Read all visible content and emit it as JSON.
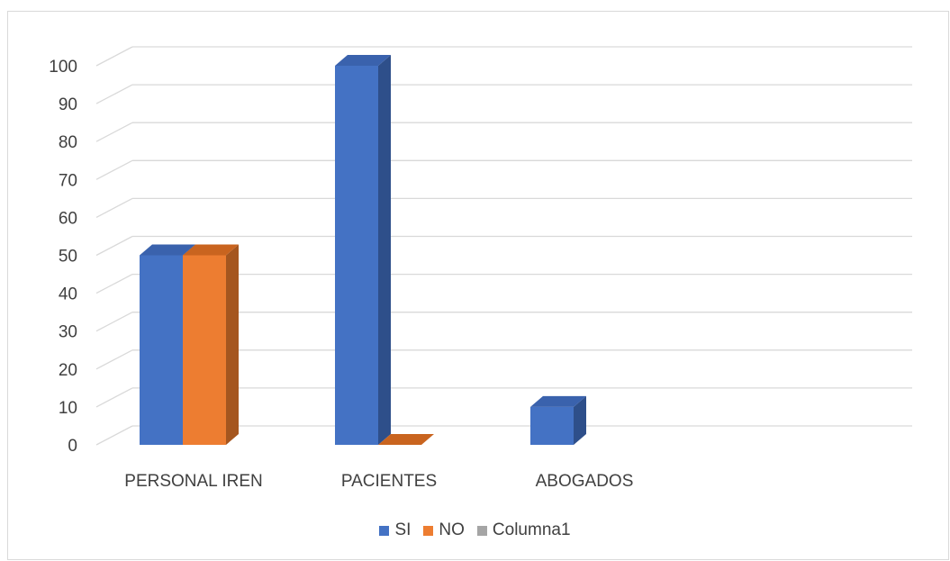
{
  "chart_data": {
    "type": "bar",
    "categories": [
      "PERSONAL IREN",
      "PACIENTES",
      "ABOGADOS"
    ],
    "series": [
      {
        "name": "SI",
        "values": [
          50,
          100,
          10
        ],
        "color": "#4472C4",
        "side": "#2E4F8A",
        "top": "#3A62AD"
      },
      {
        "name": "NO",
        "values": [
          50,
          0,
          null
        ],
        "color": "#ED7D31",
        "side": "#A5561F",
        "top": "#C9641F"
      },
      {
        "name": "Columna1",
        "values": [
          null,
          null,
          null
        ],
        "color": "#A5A5A5",
        "side": "#7a7a7a",
        "top": "#8f8f8f"
      }
    ],
    "ylim": [
      0,
      100
    ],
    "yticks": [
      0,
      10,
      20,
      30,
      40,
      50,
      60,
      70,
      80,
      90,
      100
    ],
    "grid": true,
    "legend_position": "bottom",
    "title": "",
    "xlabel": "",
    "ylabel": ""
  }
}
